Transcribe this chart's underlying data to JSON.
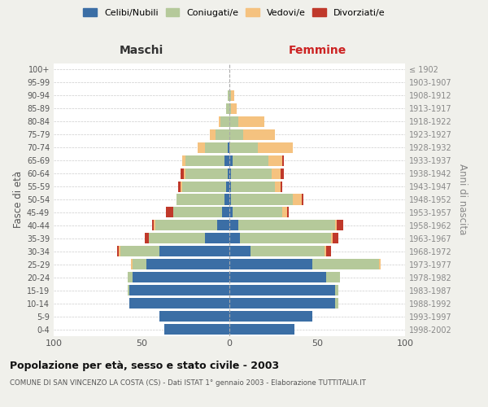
{
  "age_groups": [
    "0-4",
    "5-9",
    "10-14",
    "15-19",
    "20-24",
    "25-29",
    "30-34",
    "35-39",
    "40-44",
    "45-49",
    "50-54",
    "55-59",
    "60-64",
    "65-69",
    "70-74",
    "75-79",
    "80-84",
    "85-89",
    "90-94",
    "95-99",
    "100+"
  ],
  "birth_years": [
    "1998-2002",
    "1993-1997",
    "1988-1992",
    "1983-1987",
    "1978-1982",
    "1973-1977",
    "1968-1972",
    "1963-1967",
    "1958-1962",
    "1953-1957",
    "1948-1952",
    "1943-1947",
    "1938-1942",
    "1933-1937",
    "1928-1932",
    "1923-1927",
    "1918-1922",
    "1913-1917",
    "1908-1912",
    "1903-1907",
    "≤ 1902"
  ],
  "maschi": {
    "celibi": [
      37,
      40,
      57,
      57,
      55,
      47,
      40,
      14,
      7,
      4,
      3,
      2,
      1,
      3,
      1,
      0,
      0,
      0,
      0,
      0,
      0
    ],
    "coniugati": [
      0,
      0,
      0,
      1,
      3,
      8,
      22,
      32,
      35,
      28,
      27,
      25,
      24,
      22,
      13,
      8,
      5,
      2,
      1,
      0,
      0
    ],
    "vedovi": [
      0,
      0,
      0,
      0,
      0,
      1,
      1,
      0,
      1,
      0,
      0,
      1,
      1,
      2,
      4,
      3,
      1,
      0,
      0,
      0,
      0
    ],
    "divorziati": [
      0,
      0,
      0,
      0,
      0,
      0,
      1,
      2,
      1,
      4,
      0,
      1,
      2,
      0,
      0,
      0,
      0,
      0,
      0,
      0,
      0
    ]
  },
  "femmine": {
    "nubili": [
      37,
      47,
      60,
      60,
      55,
      47,
      12,
      6,
      5,
      2,
      1,
      1,
      1,
      2,
      0,
      0,
      0,
      0,
      0,
      0,
      0
    ],
    "coniugate": [
      0,
      0,
      2,
      2,
      8,
      38,
      42,
      52,
      55,
      28,
      35,
      25,
      23,
      20,
      16,
      8,
      5,
      1,
      1,
      0,
      0
    ],
    "vedove": [
      0,
      0,
      0,
      0,
      0,
      1,
      1,
      1,
      1,
      3,
      5,
      3,
      5,
      8,
      20,
      18,
      15,
      3,
      2,
      0,
      0
    ],
    "divorziate": [
      0,
      0,
      0,
      0,
      0,
      0,
      3,
      3,
      4,
      1,
      1,
      1,
      2,
      1,
      0,
      0,
      0,
      0,
      0,
      0,
      0
    ]
  },
  "colors": {
    "celibi": "#3b6ea5",
    "coniugati": "#b5c99a",
    "vedovi": "#f5c27f",
    "divorziati": "#c0392b"
  },
  "xlim": 100,
  "title": "Popolazione per età, sesso e stato civile - 2003",
  "subtitle": "COMUNE DI SAN VINCENZO LA COSTA (CS) - Dati ISTAT 1° gennaio 2003 - Elaborazione TUTTITALIA.IT",
  "ylabel_left": "Fasce di età",
  "ylabel_right": "Anni di nascita",
  "xlabel_left": "Maschi",
  "xlabel_right": "Femmine",
  "bg_color": "#f0f0eb",
  "plot_bg_color": "#ffffff"
}
